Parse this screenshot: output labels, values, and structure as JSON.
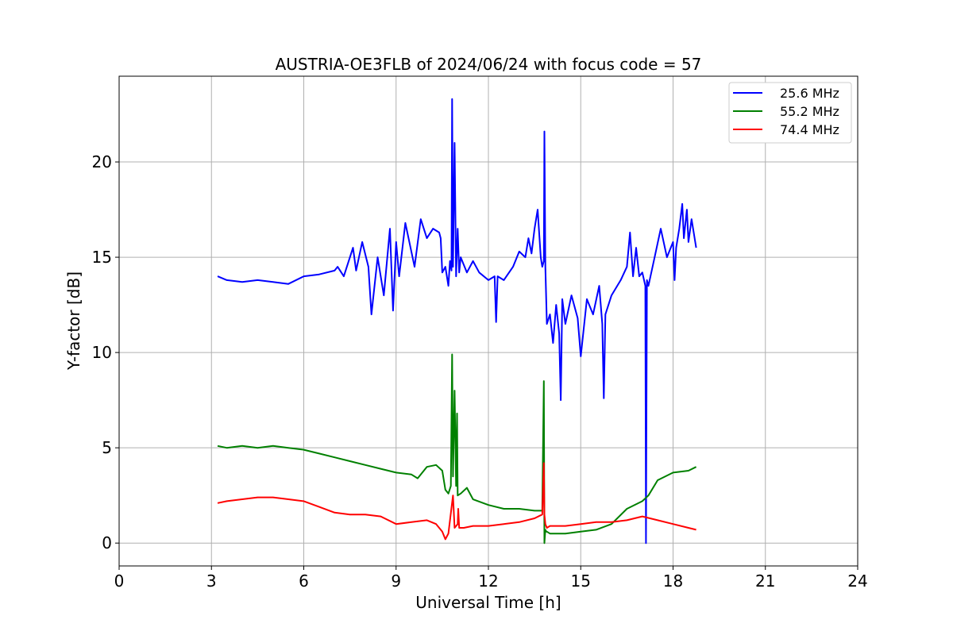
{
  "chart_data": {
    "type": "line",
    "title": "AUSTRIA-OE3FLB of 2024/06/24 with focus code = 57",
    "xlabel": "Universal Time [h]",
    "ylabel": "Y-factor [dB]",
    "xlim": [
      0,
      24
    ],
    "ylim": [
      -1.2,
      24.5
    ],
    "xticks": [
      0,
      3,
      6,
      9,
      12,
      15,
      18,
      21,
      24
    ],
    "xtick_labels": [
      "0",
      "3",
      "6",
      "9",
      "12",
      "15",
      "18",
      "21",
      "24"
    ],
    "yticks": [
      0,
      5,
      10,
      15,
      20
    ],
    "ytick_labels": [
      "0",
      "5",
      "10",
      "15",
      "20"
    ],
    "grid": true,
    "legend_position": "top-right",
    "series": [
      {
        "name": "25.6 MHz",
        "color": "#0000ff",
        "x": [
          3.2,
          3.5,
          4.0,
          4.5,
          5.0,
          5.5,
          6.0,
          6.5,
          7.0,
          7.1,
          7.3,
          7.6,
          7.7,
          7.9,
          8.1,
          8.2,
          8.4,
          8.6,
          8.8,
          8.9,
          9.0,
          9.1,
          9.3,
          9.6,
          9.8,
          10.0,
          10.2,
          10.4,
          10.45,
          10.5,
          10.6,
          10.7,
          10.75,
          10.8,
          10.82,
          10.85,
          10.9,
          10.95,
          11.0,
          11.05,
          11.1,
          11.3,
          11.5,
          11.7,
          12.0,
          12.2,
          12.25,
          12.3,
          12.5,
          12.8,
          13.0,
          13.2,
          13.3,
          13.4,
          13.5,
          13.6,
          13.7,
          13.75,
          13.8,
          13.82,
          13.85,
          13.9,
          14.0,
          14.1,
          14.2,
          14.3,
          14.35,
          14.4,
          14.5,
          14.7,
          14.9,
          15.0,
          15.2,
          15.4,
          15.6,
          15.7,
          15.75,
          15.8,
          16.0,
          16.3,
          16.5,
          16.6,
          16.7,
          16.8,
          16.9,
          17.0,
          17.1,
          17.12,
          17.15,
          17.2,
          17.4,
          17.6,
          17.8,
          18.0,
          18.05,
          18.1,
          18.2,
          18.3,
          18.35,
          18.45,
          18.5,
          18.6,
          18.75
        ],
        "y": [
          14.0,
          13.8,
          13.7,
          13.8,
          13.7,
          13.6,
          14.0,
          14.1,
          14.3,
          14.5,
          14.0,
          15.5,
          14.3,
          15.8,
          14.5,
          12.0,
          15.0,
          13.0,
          16.5,
          12.2,
          15.8,
          14.0,
          16.8,
          14.5,
          17.0,
          16.0,
          16.5,
          16.3,
          16.0,
          14.2,
          14.5,
          13.5,
          14.8,
          14.3,
          23.3,
          14.5,
          21.0,
          14.0,
          16.5,
          14.2,
          15.0,
          14.2,
          14.8,
          14.2,
          13.8,
          14.0,
          11.6,
          14.0,
          13.8,
          14.5,
          15.3,
          15.0,
          16.0,
          15.2,
          16.5,
          17.5,
          15.0,
          14.5,
          14.8,
          21.6,
          14.5,
          11.5,
          12.0,
          10.5,
          12.5,
          11.0,
          7.5,
          12.8,
          11.5,
          13.0,
          11.8,
          9.8,
          12.8,
          12.0,
          13.5,
          11.5,
          7.6,
          12.0,
          13.0,
          13.8,
          14.5,
          16.3,
          14.0,
          15.5,
          14.0,
          14.2,
          13.5,
          0.0,
          13.8,
          13.5,
          15.0,
          16.5,
          15.0,
          15.8,
          13.8,
          15.5,
          16.5,
          17.8,
          16.0,
          17.5,
          15.8,
          17.0,
          15.5
        ]
      },
      {
        "name": "55.2 MHz",
        "color": "#008000",
        "x": [
          3.2,
          3.5,
          4.0,
          4.5,
          5.0,
          5.5,
          6.0,
          6.5,
          7.0,
          7.5,
          8.0,
          8.5,
          9.0,
          9.5,
          9.7,
          10.0,
          10.3,
          10.5,
          10.6,
          10.7,
          10.78,
          10.82,
          10.85,
          10.9,
          10.95,
          10.98,
          11.0,
          11.1,
          11.3,
          11.5,
          12.0,
          12.5,
          13.0,
          13.5,
          13.75,
          13.8,
          13.82,
          13.85,
          13.88,
          13.9,
          14.0,
          14.5,
          15.0,
          15.5,
          16.0,
          16.5,
          17.0,
          17.2,
          17.5,
          18.0,
          18.5,
          18.75
        ],
        "y": [
          5.1,
          5.0,
          5.1,
          5.0,
          5.1,
          5.0,
          4.9,
          4.7,
          4.5,
          4.3,
          4.1,
          3.9,
          3.7,
          3.6,
          3.4,
          4.0,
          4.1,
          3.8,
          2.8,
          2.6,
          3.0,
          9.9,
          3.5,
          8.0,
          3.0,
          6.8,
          2.5,
          2.6,
          2.9,
          2.3,
          2.0,
          1.8,
          1.8,
          1.7,
          1.7,
          8.5,
          0.0,
          0.7,
          0.6,
          0.6,
          0.5,
          0.5,
          0.6,
          0.7,
          1.0,
          1.8,
          2.2,
          2.5,
          3.3,
          3.7,
          3.8,
          4.0
        ]
      },
      {
        "name": "74.4 MHz",
        "color": "#ff0000",
        "x": [
          3.2,
          3.5,
          4.0,
          4.5,
          5.0,
          5.5,
          6.0,
          6.5,
          7.0,
          7.5,
          8.0,
          8.5,
          9.0,
          9.5,
          10.0,
          10.3,
          10.5,
          10.6,
          10.7,
          10.85,
          10.9,
          11.0,
          11.02,
          11.05,
          11.2,
          11.5,
          12.0,
          12.5,
          13.0,
          13.5,
          13.75,
          13.8,
          13.82,
          13.85,
          13.9,
          14.0,
          14.5,
          15.0,
          15.5,
          16.0,
          16.5,
          17.0,
          17.5,
          18.0,
          18.5,
          18.75
        ],
        "y": [
          2.1,
          2.2,
          2.3,
          2.4,
          2.4,
          2.3,
          2.2,
          1.9,
          1.6,
          1.5,
          1.5,
          1.4,
          1.0,
          1.1,
          1.2,
          1.0,
          0.6,
          0.2,
          0.5,
          2.5,
          0.8,
          1.0,
          1.8,
          0.8,
          0.8,
          0.9,
          0.9,
          1.0,
          1.1,
          1.3,
          1.5,
          4.2,
          1.5,
          1.0,
          0.8,
          0.9,
          0.9,
          1.0,
          1.1,
          1.1,
          1.2,
          1.4,
          1.2,
          1.0,
          0.8,
          0.7
        ]
      }
    ]
  }
}
